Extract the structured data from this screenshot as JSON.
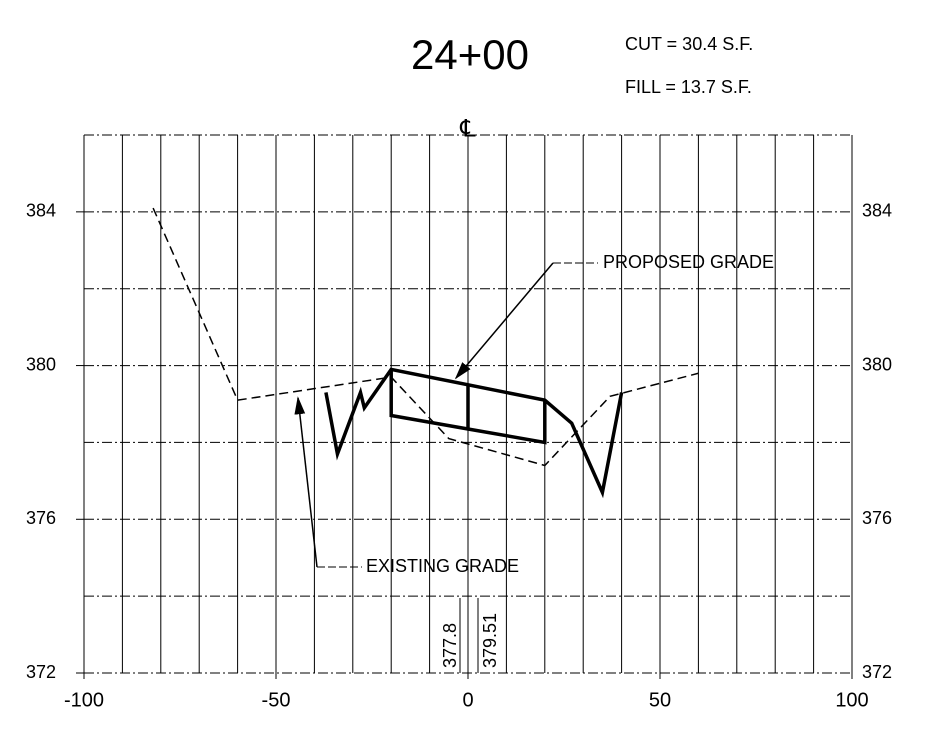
{
  "chart_data": {
    "type": "line",
    "title": "24+00",
    "annotations": [
      "CUT = 30.4 S.F.",
      "FILL = 13.7 S.F.",
      "℄",
      "PROPOSED GRADE",
      "EXISTING GRADE",
      "377.8",
      "379.51"
    ],
    "xlim": [
      -100,
      100
    ],
    "xticks": [
      -100,
      -50,
      0,
      50,
      100
    ],
    "ylim": [
      372,
      386
    ],
    "yticks": [
      372,
      376,
      380,
      384
    ],
    "xgridlines": [
      -100,
      -90,
      -80,
      -70,
      -60,
      -50,
      -40,
      -30,
      -20,
      -10,
      0,
      10,
      20,
      30,
      40,
      50,
      60,
      70,
      80,
      90,
      100
    ],
    "ygridlines": [
      372,
      374,
      376,
      378,
      380,
      382,
      384,
      386
    ],
    "series": [
      {
        "name": "EXISTING GRADE",
        "color": "#000000",
        "dash": true,
        "x": [
          -82,
          -60,
          -20,
          -5,
          20,
          37,
          60
        ],
        "values": [
          384.1,
          379.1,
          379.7,
          378.1,
          377.4,
          379.2,
          379.8
        ]
      },
      {
        "name": "PROPOSED GRADE",
        "color": "#000000",
        "dash": false,
        "x": [
          -37,
          -34,
          -28,
          -27,
          -20,
          20,
          27,
          35,
          40
        ],
        "values": [
          379.3,
          377.7,
          379.3,
          378.9,
          379.9,
          379.1,
          378.5,
          376.7,
          379.3
        ]
      },
      {
        "color": "#000000",
        "dash": false,
        "x": [
          -20,
          -20,
          0,
          20,
          20
        ],
        "values": [
          379.9,
          378.7,
          378.35,
          378.0,
          379.1
        ]
      },
      {
        "color": "#000000",
        "dash": false,
        "x": [
          0,
          0
        ],
        "values": [
          379.5,
          378.35
        ]
      }
    ]
  }
}
